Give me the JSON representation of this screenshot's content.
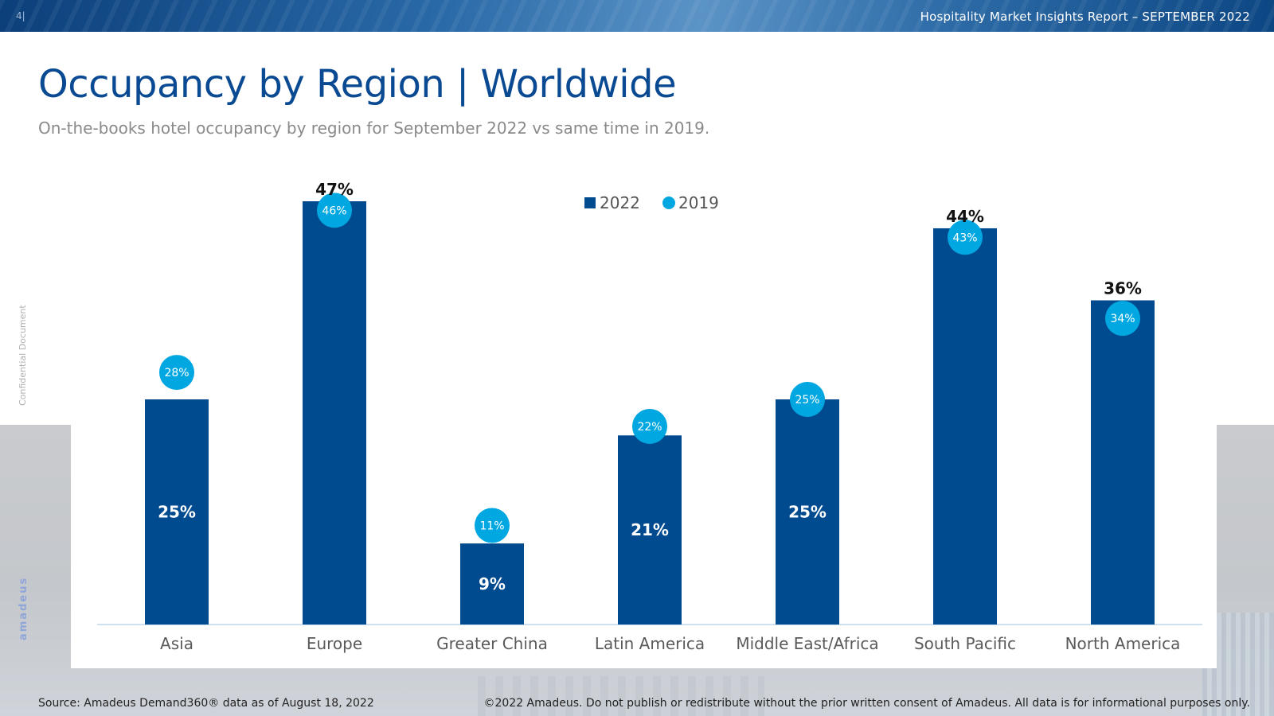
{
  "header": {
    "page_number": "4|",
    "report_title": "Hospitality Market Insights Report – SEPTEMBER 2022"
  },
  "slide": {
    "title": "Occupancy by Region | Worldwide",
    "subtitle": "On-the-books hotel occupancy by region for September 2022 vs same time in 2019."
  },
  "sidebar": {
    "confidential": "Confidential Document",
    "brand": "amadeus"
  },
  "footer": {
    "source": "Source: Amadeus Demand360® data as of August 18, 2022",
    "copyright": "©2022 Amadeus. Do not publish or redistribute without the prior written consent of Amadeus. All data is for informational purposes only."
  },
  "colors": {
    "bar_2022": "#004a8f",
    "dot_2019": "#00a7e1",
    "axis": "#cfe0ee"
  },
  "chart_data": {
    "type": "bar",
    "categories": [
      "Asia",
      "Europe",
      "Greater China",
      "Latin America",
      "Middle East/Africa",
      "South Pacific",
      "North America"
    ],
    "series": [
      {
        "name": "2022",
        "values": [
          25,
          47,
          9,
          21,
          25,
          44,
          36
        ],
        "labels": [
          "25%",
          "47%",
          "9%",
          "21%",
          "25%",
          "44%",
          "36%"
        ],
        "mark": "bar"
      },
      {
        "name": "2019",
        "values": [
          28,
          46,
          11,
          22,
          25,
          43,
          34
        ],
        "labels": [
          "28%",
          "46%",
          "11%",
          "22%",
          "25%",
          "43%",
          "34%"
        ],
        "mark": "dot"
      }
    ],
    "value_label_position": [
      "inside",
      "top",
      "inside",
      "inside",
      "inside",
      "top",
      "top"
    ],
    "ylim": [
      0,
      47
    ],
    "legend_position": "top-center",
    "grid": false,
    "title": "",
    "xlabel": "",
    "ylabel": ""
  }
}
